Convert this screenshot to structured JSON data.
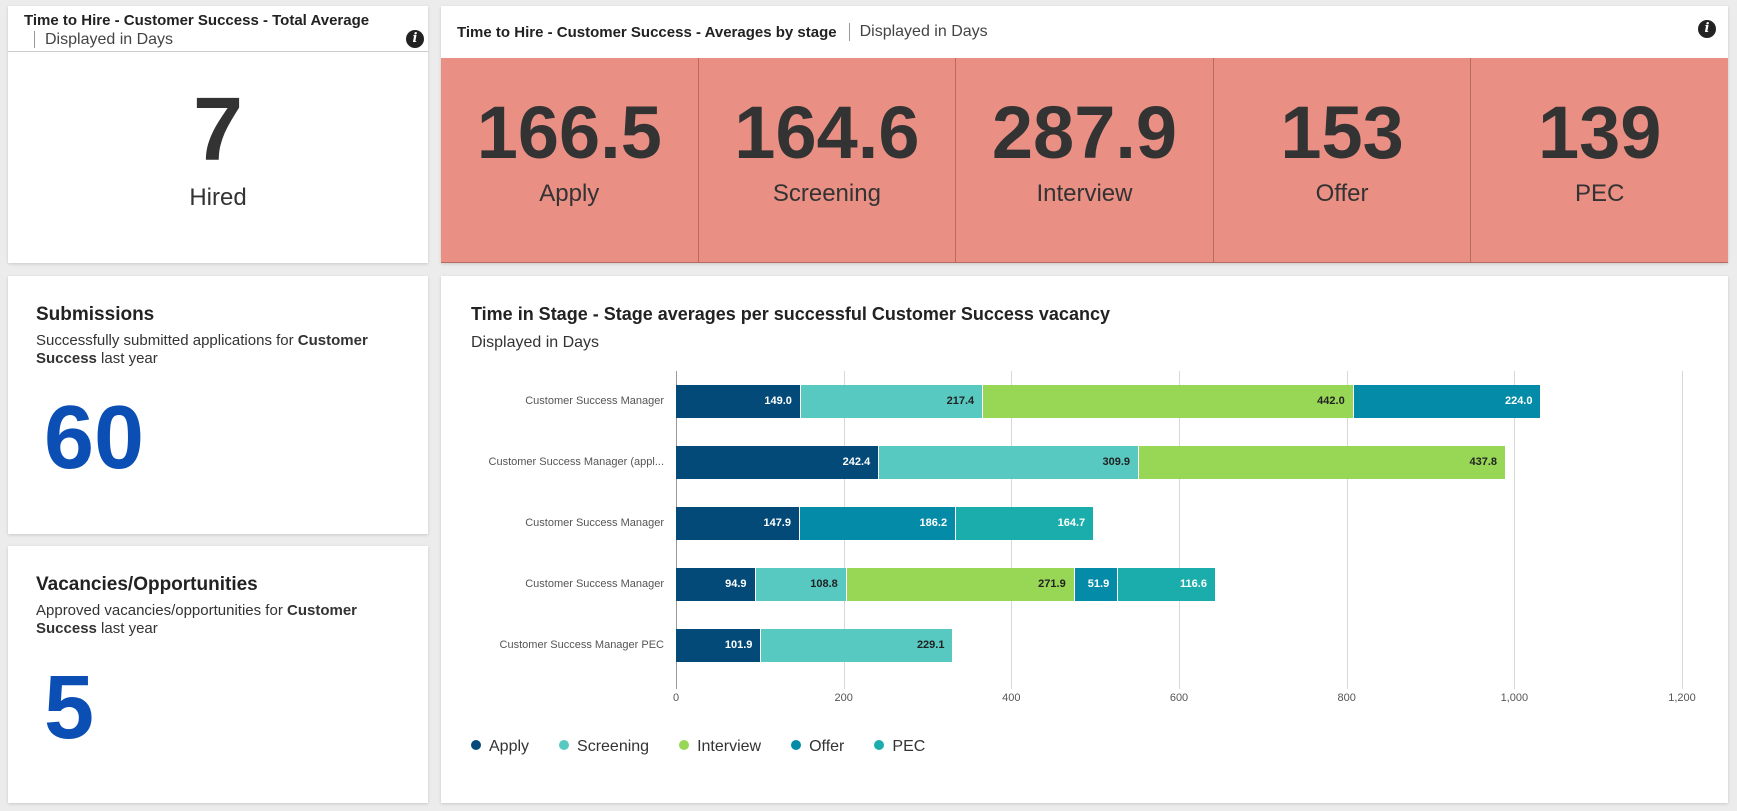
{
  "total_card": {
    "title": "Time to Hire - Customer Success - Total Average",
    "subtitle": "Displayed in Days",
    "value": "7",
    "label": "Hired"
  },
  "stage_card": {
    "title": "Time to Hire - Customer Success - Averages by stage",
    "subtitle": "Displayed in Days",
    "tiles": [
      {
        "value": "166.5",
        "label": "Apply"
      },
      {
        "value": "164.6",
        "label": "Screening"
      },
      {
        "value": "287.9",
        "label": "Interview"
      },
      {
        "value": "153",
        "label": "Offer"
      },
      {
        "value": "139",
        "label": "PEC"
      }
    ],
    "tile_color": "#e98f84"
  },
  "submissions": {
    "title": "Submissions",
    "desc_pre": "Successfully submitted applications for ",
    "desc_bold": "Customer Success",
    "desc_post": " last year",
    "value": "60"
  },
  "vacancies": {
    "title": "Vacancies/Opportunities",
    "desc_pre": "Approved vacancies/opportunities for ",
    "desc_bold": "Customer Success",
    "desc_post": " last year",
    "value": "5"
  },
  "info_icon": "i",
  "chart_data": {
    "type": "bar",
    "orientation": "horizontal",
    "stacked": true,
    "title": "Time in Stage - Stage averages per successful Customer Success vacancy",
    "subtitle": "Displayed in Days",
    "categories": [
      "Customer Success Manager",
      "Customer Success Manager (appl...",
      "Customer Success Manager",
      "Customer Success Manager",
      "Customer Success Manager PEC"
    ],
    "series": [
      {
        "name": "Apply",
        "color": "#034a78",
        "label_color": "#ffffff",
        "values": [
          149.0,
          242.4,
          147.9,
          94.9,
          101.9
        ]
      },
      {
        "name": "Screening",
        "color": "#57c9c1",
        "label_color": "#222222",
        "values": [
          217.4,
          309.9,
          null,
          108.8,
          229.1
        ]
      },
      {
        "name": "Interview",
        "color": "#98d755",
        "label_color": "#222222",
        "values": [
          442.0,
          437.8,
          null,
          271.9,
          null
        ]
      },
      {
        "name": "Offer",
        "color": "#038ba8",
        "label_color": "#ffffff",
        "values": [
          224.0,
          null,
          186.2,
          51.9,
          null
        ]
      },
      {
        "name": "PEC",
        "color": "#1badab",
        "label_color": "#ffffff",
        "values": [
          null,
          null,
          164.7,
          116.6,
          null
        ]
      }
    ],
    "xlim": [
      0,
      1200
    ],
    "ticks": [
      "0",
      "200",
      "400",
      "600",
      "800",
      "1,000",
      "1,200"
    ],
    "legend": "bottom-left",
    "grid": true
  }
}
